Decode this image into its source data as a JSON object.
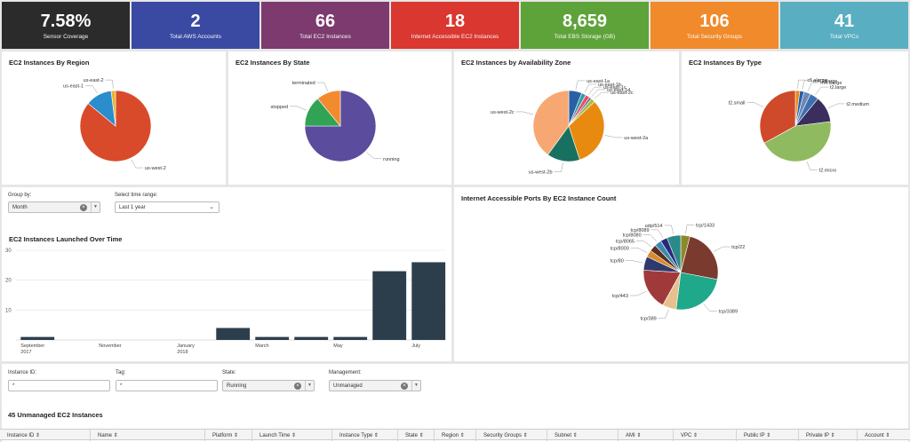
{
  "kpis": [
    {
      "value": "7.58%",
      "label": "Sensor Coverage",
      "color": "#2b2b2b"
    },
    {
      "value": "2",
      "label": "Total AWS Accounts",
      "color": "#3a4aa3"
    },
    {
      "value": "66",
      "label": "Total EC2 Instances",
      "color": "#7d3a6e"
    },
    {
      "value": "18",
      "label": "Internet Accessible EC2 Instances",
      "color": "#d9372f"
    },
    {
      "value": "8,659",
      "label": "Total EBS Storage (GB)",
      "color": "#5ea33a"
    },
    {
      "value": "106",
      "label": "Total Security Groups",
      "color": "#f08a2a"
    },
    {
      "value": "41",
      "label": "Total VPCs",
      "color": "#5aaec1"
    }
  ],
  "panels": {
    "region": "EC2 Instances By Region",
    "state": "EC2 Instances By State",
    "az": "EC2 Instances by Availability Zone",
    "type": "EC2 Instances By Type",
    "ports": "Internet Accessible Ports By EC2 Instance Count",
    "timeline": "EC2 Instances Launched Over Time"
  },
  "controls": {
    "group_by_label": "Group by:",
    "group_by_value": "Month",
    "time_range_label": "Select time range:",
    "time_range_value": "Last 1 year"
  },
  "filters": {
    "instance_id_label": "Instance ID:",
    "instance_id_value": "*",
    "tag_label": "Tag:",
    "tag_value": "*",
    "state_label": "State:",
    "state_value": "Running",
    "management_label": "Management:",
    "management_value": "Unmanaged"
  },
  "table": {
    "title": "45 Unmanaged EC2 Instances",
    "columns": [
      "Instance ID",
      "Name",
      "Platform",
      "Launch Time",
      "Instance Type",
      "State",
      "Region",
      "Security Groups",
      "Subnet",
      "AMI",
      "VPC",
      "Public IP",
      "Private IP",
      "Account"
    ]
  },
  "chart_data": [
    {
      "type": "pie",
      "name": "region",
      "slices": [
        {
          "label": "us-west-2",
          "value": 86,
          "color": "#d94a2b"
        },
        {
          "label": "us-east-1",
          "value": 12,
          "color": "#2a8dcc"
        },
        {
          "label": "us-east-2",
          "value": 2,
          "color": "#e8b52a"
        }
      ]
    },
    {
      "type": "pie",
      "name": "state",
      "slices": [
        {
          "label": "running",
          "value": 75,
          "color": "#5b4c9e"
        },
        {
          "label": "stopped",
          "value": 14,
          "color": "#31a354"
        },
        {
          "label": "terminated",
          "value": 11,
          "color": "#f28a30"
        }
      ]
    },
    {
      "type": "pie",
      "name": "az",
      "slices": [
        {
          "label": "us-east-1a",
          "value": 6,
          "color": "#2a5fa8"
        },
        {
          "label": "us-east-1b",
          "value": 2,
          "color": "#2ea0a0"
        },
        {
          "label": "us-east-1c",
          "value": 2,
          "color": "#e84e6a"
        },
        {
          "label": "us-east-1d",
          "value": 1,
          "color": "#7a4aa0"
        },
        {
          "label": "us-east-2c",
          "value": 2,
          "color": "#9bc34a"
        },
        {
          "label": "us-west-2a",
          "value": 32,
          "color": "#e88a10"
        },
        {
          "label": "us-west-2b",
          "value": 15,
          "color": "#177060"
        },
        {
          "label": "us-west-2c",
          "value": 40,
          "color": "#f7a872"
        }
      ]
    },
    {
      "type": "pie",
      "name": "type",
      "slices": [
        {
          "label": "c5.xlarge",
          "value": 2,
          "color": "#e88a10"
        },
        {
          "label": "m4.2xlarge",
          "value": 2,
          "color": "#2a5fa8"
        },
        {
          "label": "m4.xlarge",
          "value": 3,
          "color": "#6d88b6"
        },
        {
          "label": "t2.large",
          "value": 4,
          "color": "#3e6fb0"
        },
        {
          "label": "t2.medium",
          "value": 12,
          "color": "#3b2e5f"
        },
        {
          "label": "t2.micro",
          "value": 44,
          "color": "#8fba5f"
        },
        {
          "label": "t2.small",
          "value": 33,
          "color": "#cf4a2a"
        }
      ]
    },
    {
      "type": "pie",
      "name": "ports",
      "slices": [
        {
          "label": "tcp/1433",
          "value": 4,
          "color": "#8a8a2a"
        },
        {
          "label": "tcp/22",
          "value": 24,
          "color": "#7a3a2e"
        },
        {
          "label": "tcp/3389",
          "value": 24,
          "color": "#1fa88a"
        },
        {
          "label": "tcp/389",
          "value": 6,
          "color": "#e8c090"
        },
        {
          "label": "tcp/443",
          "value": 18,
          "color": "#a03a3a"
        },
        {
          "label": "tcp/80",
          "value": 6,
          "color": "#2e3a6e"
        },
        {
          "label": "tcp/8000",
          "value": 3,
          "color": "#d98a2a"
        },
        {
          "label": "tcp/8065",
          "value": 3,
          "color": "#5a2e1e"
        },
        {
          "label": "tcp/8080",
          "value": 3,
          "color": "#3a8ab0"
        },
        {
          "label": "tcp/8089",
          "value": 3,
          "color": "#2a2a7a"
        },
        {
          "label": "udp/514",
          "value": 6,
          "color": "#2a8a8a"
        }
      ]
    },
    {
      "type": "bar",
      "name": "timeline",
      "categories": [
        "2017-09",
        "2017-10",
        "2017-11",
        "2017-12",
        "2018-01",
        "2018-02",
        "2018-03",
        "2018-04",
        "2018-05",
        "2018-06",
        "2018-07"
      ],
      "values": [
        1,
        0,
        0,
        0,
        0,
        4,
        1,
        1,
        1,
        23,
        26
      ],
      "ylim": [
        0,
        30
      ],
      "yticks": [
        "10",
        "20",
        "30"
      ],
      "xtick_labels": [
        {
          "line1": "September",
          "line2": "2017"
        },
        {
          "line1": "November",
          "line2": ""
        },
        {
          "line1": "January",
          "line2": "2018"
        },
        {
          "line1": "March",
          "line2": ""
        },
        {
          "line1": "May",
          "line2": ""
        },
        {
          "line1": "July",
          "line2": ""
        }
      ],
      "color": "#2c3e4c"
    }
  ]
}
